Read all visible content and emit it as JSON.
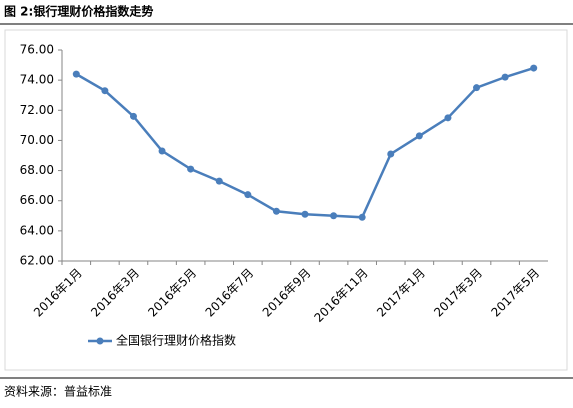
{
  "chart_data": {
    "type": "line",
    "title": "图 2:银行理财价格指数走势",
    "source": "资料来源：普益标准",
    "categories": [
      "2016年1月",
      null,
      "2016年3月",
      null,
      "2016年5月",
      null,
      "2016年7月",
      null,
      "2016年9月",
      null,
      "2016年11月",
      null,
      "2017年1月",
      null,
      "2017年3月",
      null,
      "2017年5月"
    ],
    "series": [
      {
        "name": "全国银行理财价格指数",
        "color": "#4a7ebb",
        "values": [
          74.4,
          73.3,
          71.6,
          69.3,
          68.1,
          67.3,
          66.4,
          65.3,
          65.1,
          65.0,
          64.9,
          69.1,
          70.3,
          71.5,
          73.5,
          74.2,
          74.8
        ]
      }
    ],
    "ylim": [
      62,
      76
    ],
    "yticks": [
      {
        "value": 62,
        "label": "62.00"
      },
      {
        "value": 64,
        "label": "64.00"
      },
      {
        "value": 66,
        "label": "66.00"
      },
      {
        "value": 68,
        "label": "68.00"
      },
      {
        "value": 70,
        "label": "70.00"
      },
      {
        "value": 72,
        "label": "72.00"
      },
      {
        "value": 74,
        "label": "74.00"
      },
      {
        "value": 76,
        "label": "76.00"
      }
    ],
    "legend": "bottom-left"
  }
}
